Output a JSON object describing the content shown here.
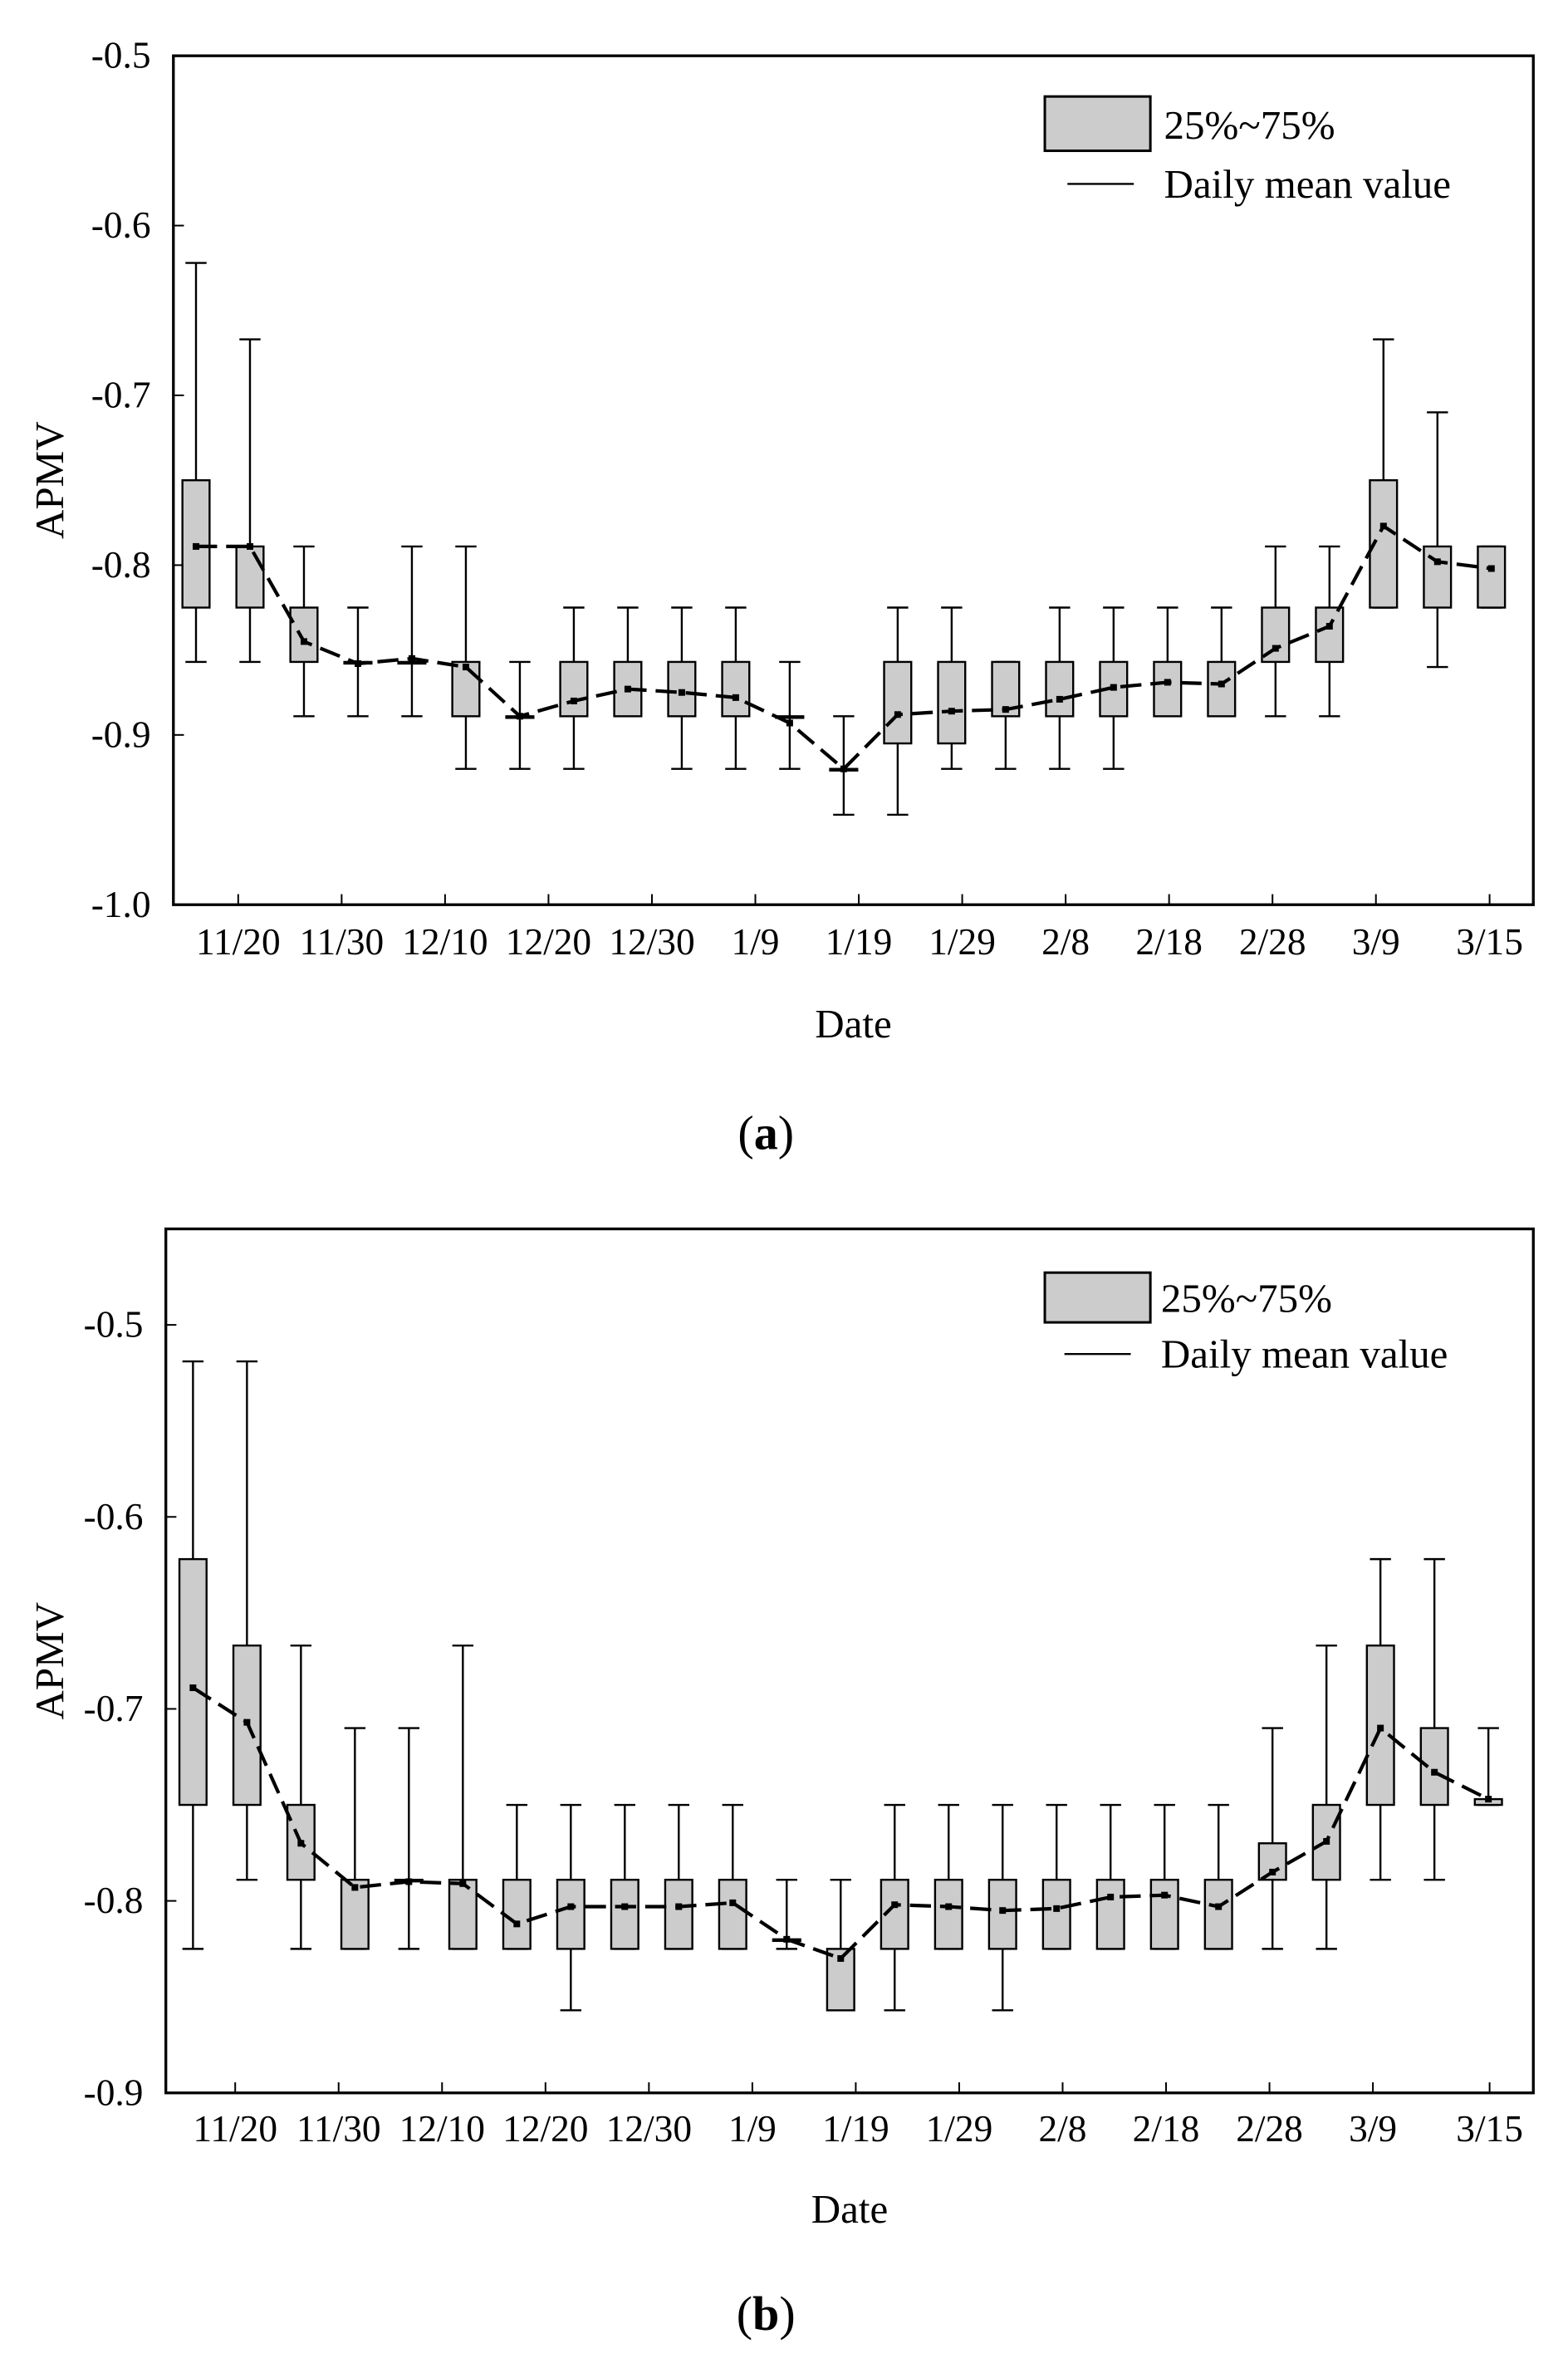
{
  "chart_data": [
    {
      "type": "box",
      "panel_label": "a",
      "title": "",
      "xlabel": "Date",
      "ylabel": "APMV",
      "ylim": [
        -1.0,
        -0.5
      ],
      "yticks": [
        -1.0,
        -0.9,
        -0.8,
        -0.7,
        -0.6,
        -0.5
      ],
      "ytick_labels": [
        "-1.0",
        "-0.9",
        "-0.8",
        "-0.7",
        "-0.6",
        "-0.5"
      ],
      "xtick_labels": [
        "11/20",
        "11/30",
        "12/10",
        "12/20",
        "12/30",
        "1/9",
        "1/19",
        "1/29",
        "2/8",
        "2/18",
        "2/28",
        "3/9",
        "3/15"
      ],
      "legend": {
        "box_label": "25%~75%",
        "line_label": "Daily mean value",
        "position": "top-right"
      },
      "boxes": [
        {
          "q1": -0.825,
          "q3": -0.75,
          "min": -0.857,
          "max": -0.622
        },
        {
          "q1": -0.825,
          "q3": -0.789,
          "min": -0.857,
          "max": -0.667
        },
        {
          "q1": -0.857,
          "q3": -0.825,
          "min": -0.889,
          "max": -0.789
        },
        {
          "q1": -0.857,
          "q3": -0.857,
          "min": -0.889,
          "max": -0.825
        },
        {
          "q1": -0.857,
          "q3": -0.857,
          "min": -0.889,
          "max": -0.789
        },
        {
          "q1": -0.889,
          "q3": -0.857,
          "min": -0.92,
          "max": -0.789
        },
        {
          "q1": -0.889,
          "q3": -0.889,
          "min": -0.92,
          "max": -0.857
        },
        {
          "q1": -0.889,
          "q3": -0.857,
          "min": -0.92,
          "max": -0.825
        },
        {
          "q1": -0.889,
          "q3": -0.857,
          "min": -0.889,
          "max": -0.825
        },
        {
          "q1": -0.889,
          "q3": -0.857,
          "min": -0.92,
          "max": -0.825
        },
        {
          "q1": -0.889,
          "q3": -0.857,
          "min": -0.92,
          "max": -0.825
        },
        {
          "q1": -0.889,
          "q3": -0.889,
          "min": -0.92,
          "max": -0.857
        },
        {
          "q1": -0.92,
          "q3": -0.92,
          "min": -0.947,
          "max": -0.889
        },
        {
          "q1": -0.905,
          "q3": -0.857,
          "min": -0.947,
          "max": -0.825
        },
        {
          "q1": -0.905,
          "q3": -0.857,
          "min": -0.92,
          "max": -0.825
        },
        {
          "q1": -0.889,
          "q3": -0.857,
          "min": -0.92,
          "max": -0.857
        },
        {
          "q1": -0.889,
          "q3": -0.857,
          "min": -0.92,
          "max": -0.825
        },
        {
          "q1": -0.889,
          "q3": -0.857,
          "min": -0.92,
          "max": -0.825
        },
        {
          "q1": -0.889,
          "q3": -0.857,
          "min": -0.889,
          "max": -0.825
        },
        {
          "q1": -0.889,
          "q3": -0.857,
          "min": -0.889,
          "max": -0.825
        },
        {
          "q1": -0.857,
          "q3": -0.825,
          "min": -0.889,
          "max": -0.789
        },
        {
          "q1": -0.857,
          "q3": -0.825,
          "min": -0.889,
          "max": -0.789
        },
        {
          "q1": -0.825,
          "q3": -0.75,
          "min": -0.825,
          "max": -0.667
        },
        {
          "q1": -0.825,
          "q3": -0.789,
          "min": -0.86,
          "max": -0.71
        },
        {
          "q1": -0.825,
          "q3": -0.789,
          "min": -0.825,
          "max": -0.789
        }
      ],
      "means": [
        -0.789,
        -0.789,
        -0.845,
        -0.858,
        -0.855,
        -0.86,
        -0.889,
        -0.88,
        -0.873,
        -0.875,
        -0.878,
        -0.893,
        -0.92,
        -0.888,
        -0.886,
        -0.885,
        -0.879,
        -0.872,
        -0.869,
        -0.87,
        -0.849,
        -0.836,
        -0.777,
        -0.798,
        -0.802
      ]
    },
    {
      "type": "box",
      "panel_label": "b",
      "title": "",
      "xlabel": "Date",
      "ylabel": "APMV",
      "ylim": [
        -0.9,
        -0.45
      ],
      "yticks": [
        -0.9,
        -0.8,
        -0.7,
        -0.6,
        -0.5
      ],
      "ytick_labels": [
        "-0.9",
        "-0.8",
        "-0.7",
        "-0.6",
        "-0.5"
      ],
      "xtick_labels": [
        "11/20",
        "11/30",
        "12/10",
        "12/20",
        "12/30",
        "1/9",
        "1/19",
        "1/29",
        "2/8",
        "2/18",
        "2/28",
        "3/9",
        "3/15"
      ],
      "legend": {
        "box_label": "25%~75%",
        "line_label": "Daily mean value",
        "position": "top-right"
      },
      "boxes": [
        {
          "q1": -0.75,
          "q3": -0.622,
          "min": -0.825,
          "max": -0.519
        },
        {
          "q1": -0.75,
          "q3": -0.667,
          "min": -0.789,
          "max": -0.519
        },
        {
          "q1": -0.789,
          "q3": -0.75,
          "min": -0.825,
          "max": -0.667
        },
        {
          "q1": -0.825,
          "q3": -0.789,
          "min": -0.825,
          "max": -0.71
        },
        {
          "q1": -0.789,
          "q3": -0.789,
          "min": -0.825,
          "max": -0.71
        },
        {
          "q1": -0.825,
          "q3": -0.789,
          "min": -0.825,
          "max": -0.667
        },
        {
          "q1": -0.825,
          "q3": -0.789,
          "min": -0.825,
          "max": -0.75
        },
        {
          "q1": -0.825,
          "q3": -0.789,
          "min": -0.857,
          "max": -0.75
        },
        {
          "q1": -0.825,
          "q3": -0.789,
          "min": -0.825,
          "max": -0.75
        },
        {
          "q1": -0.825,
          "q3": -0.789,
          "min": -0.825,
          "max": -0.75
        },
        {
          "q1": -0.825,
          "q3": -0.789,
          "min": -0.825,
          "max": -0.75
        },
        {
          "q1": -0.82,
          "q3": -0.82,
          "min": -0.825,
          "max": -0.789
        },
        {
          "q1": -0.857,
          "q3": -0.825,
          "min": -0.857,
          "max": -0.789
        },
        {
          "q1": -0.825,
          "q3": -0.789,
          "min": -0.857,
          "max": -0.75
        },
        {
          "q1": -0.825,
          "q3": -0.789,
          "min": -0.825,
          "max": -0.75
        },
        {
          "q1": -0.825,
          "q3": -0.789,
          "min": -0.857,
          "max": -0.75
        },
        {
          "q1": -0.825,
          "q3": -0.789,
          "min": -0.825,
          "max": -0.75
        },
        {
          "q1": -0.825,
          "q3": -0.789,
          "min": -0.825,
          "max": -0.75
        },
        {
          "q1": -0.825,
          "q3": -0.789,
          "min": -0.825,
          "max": -0.75
        },
        {
          "q1": -0.825,
          "q3": -0.789,
          "min": -0.825,
          "max": -0.75
        },
        {
          "q1": -0.789,
          "q3": -0.77,
          "min": -0.825,
          "max": -0.71
        },
        {
          "q1": -0.789,
          "q3": -0.75,
          "min": -0.825,
          "max": -0.667
        },
        {
          "q1": -0.75,
          "q3": -0.667,
          "min": -0.789,
          "max": -0.622
        },
        {
          "q1": -0.75,
          "q3": -0.71,
          "min": -0.789,
          "max": -0.622
        },
        {
          "q1": -0.75,
          "q3": -0.747,
          "min": -0.75,
          "max": -0.71
        }
      ],
      "means": [
        -0.689,
        -0.707,
        -0.77,
        -0.793,
        -0.79,
        -0.791,
        -0.812,
        -0.803,
        -0.803,
        -0.803,
        -0.801,
        -0.82,
        -0.83,
        -0.802,
        -0.803,
        -0.805,
        -0.804,
        -0.798,
        -0.797,
        -0.803,
        -0.785,
        -0.769,
        -0.71,
        -0.733,
        -0.747
      ]
    }
  ]
}
